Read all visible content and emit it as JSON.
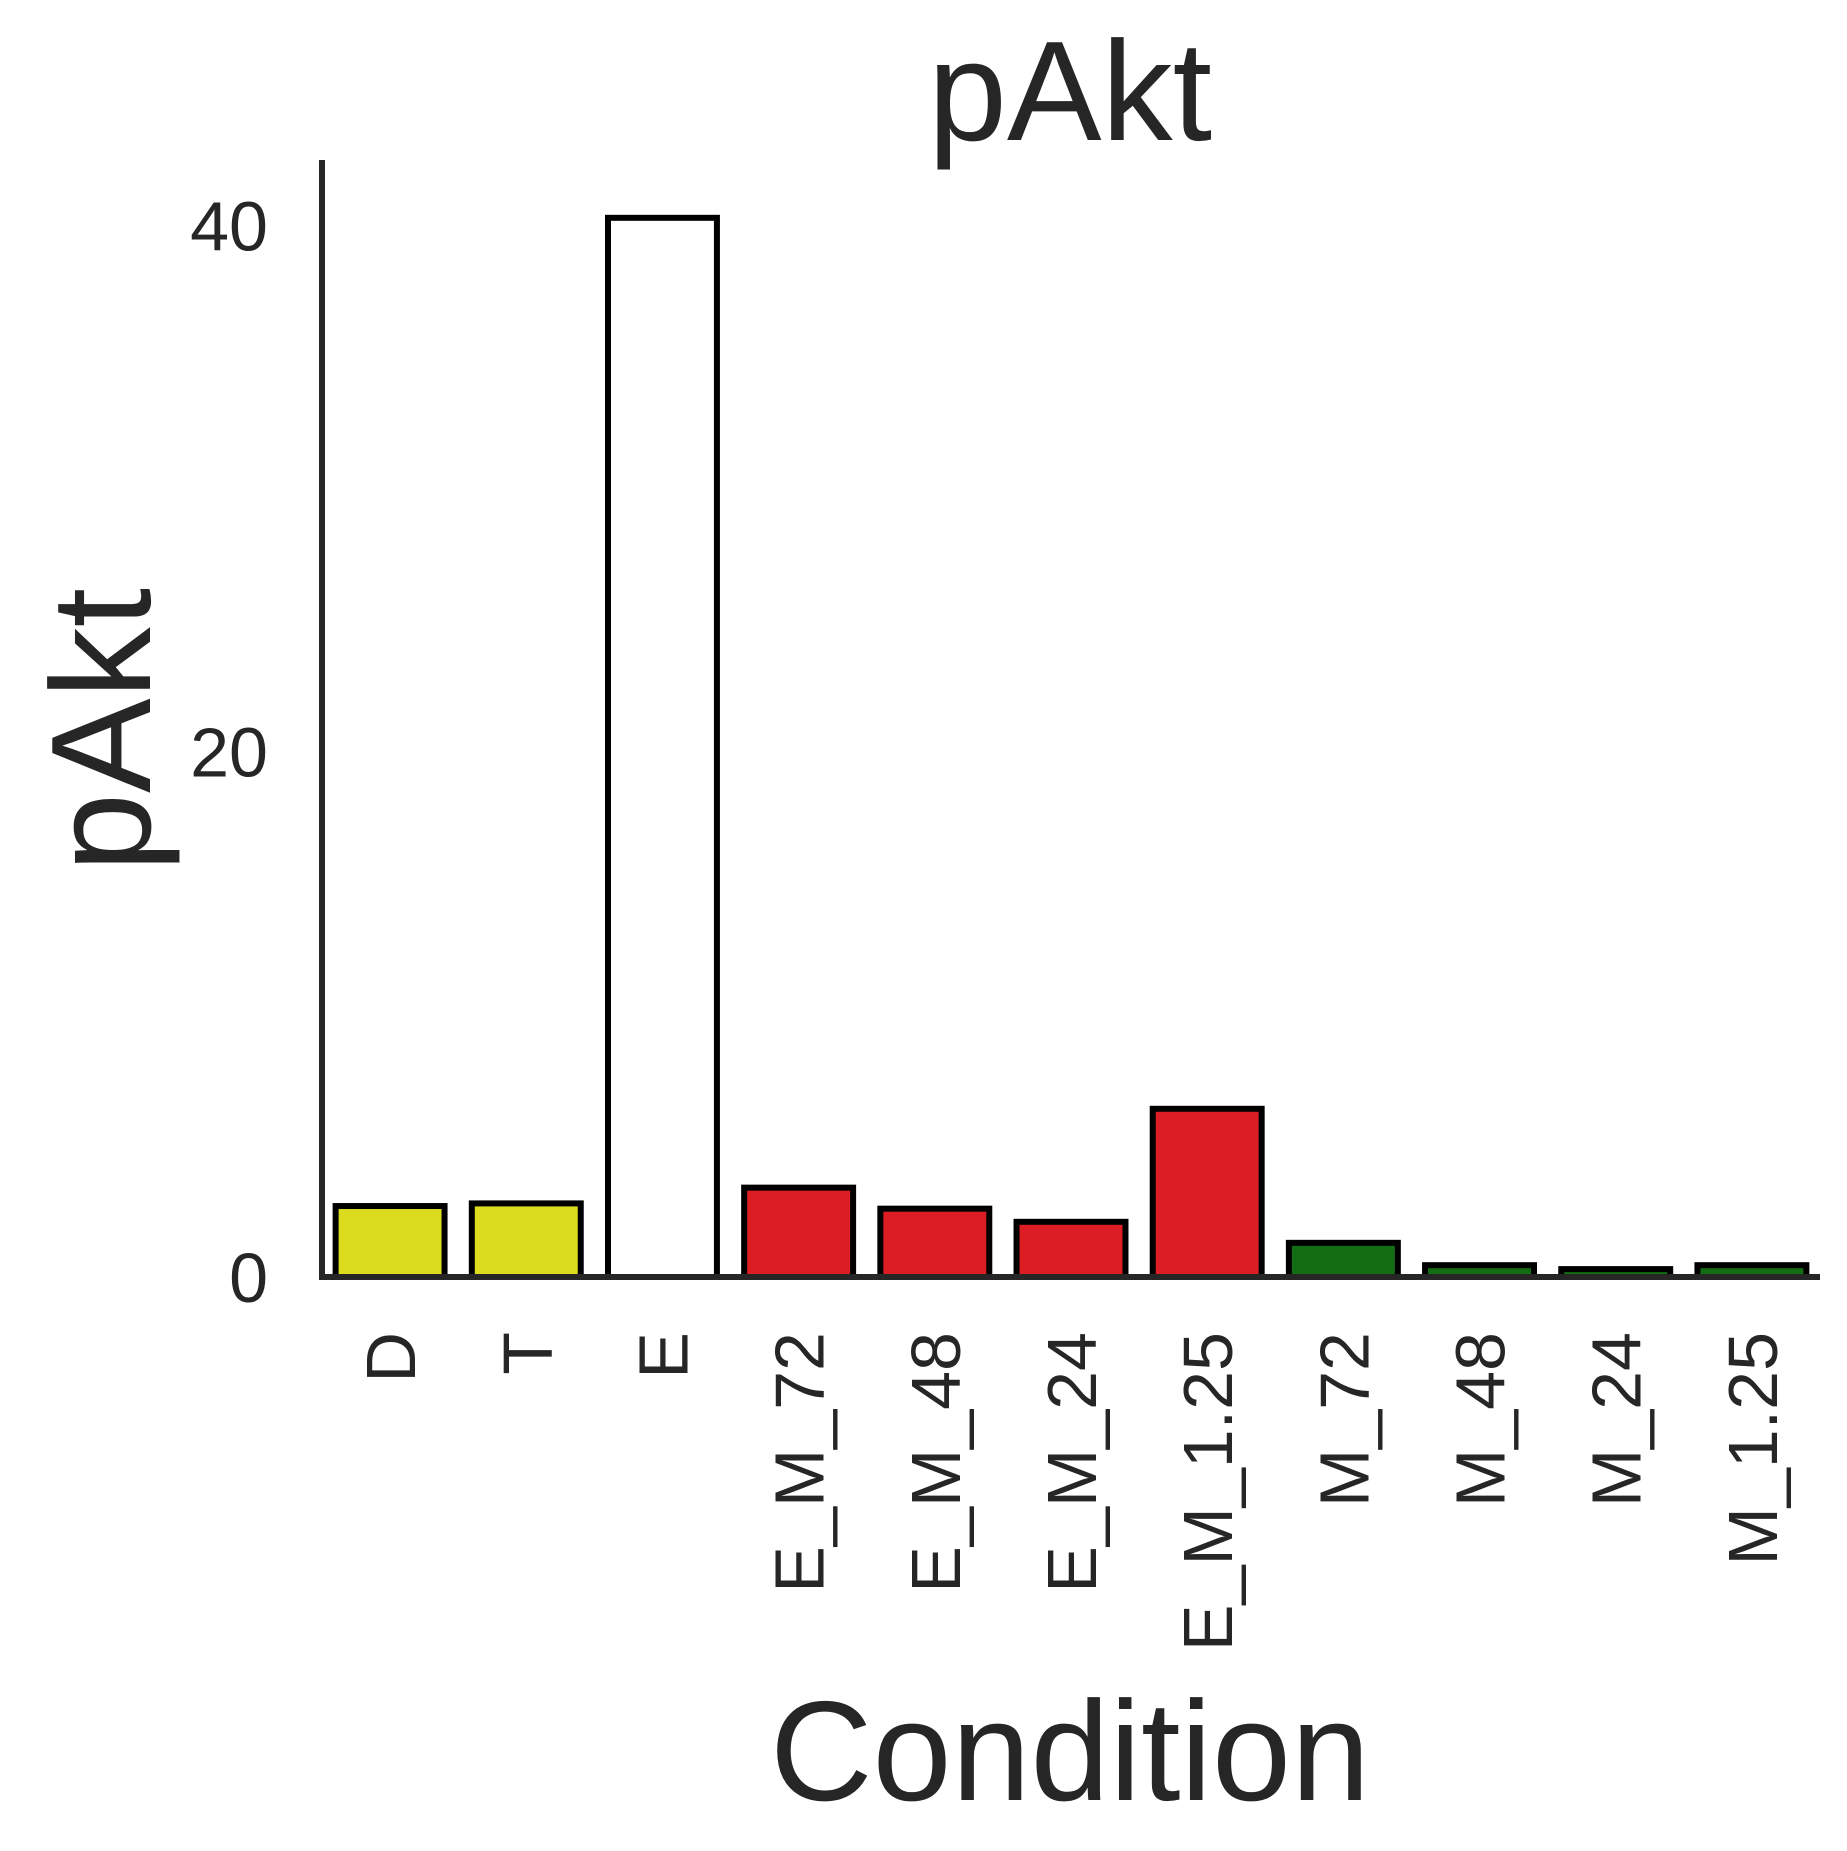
{
  "chart_data": {
    "type": "bar",
    "title": "pAkt",
    "xlabel": "Condition",
    "ylabel": "pAkt",
    "ylim": [
      0,
      42.5
    ],
    "yticks": [
      "0",
      "20",
      "40"
    ],
    "grid": false,
    "legend": "none",
    "categories": [
      "D",
      "T",
      "E",
      "E_M_72",
      "E_M_48",
      "E_M_24",
      "E_M_1.25",
      "M_72",
      "M_48",
      "M_24",
      "M_1.25"
    ],
    "values": [
      2.7,
      2.8,
      40.3,
      3.4,
      2.6,
      2.1,
      6.4,
      1.3,
      0.45,
      0.3,
      0.45
    ],
    "bar_colors": [
      "#dcdc1e",
      "#dcdc1e",
      "#ffffff",
      "#dc1e24",
      "#dc1e24",
      "#dc1e24",
      "#dc1e24",
      "#136d13",
      "#136d13",
      "#136d13",
      "#136d13"
    ],
    "edge_color": "#000000"
  }
}
